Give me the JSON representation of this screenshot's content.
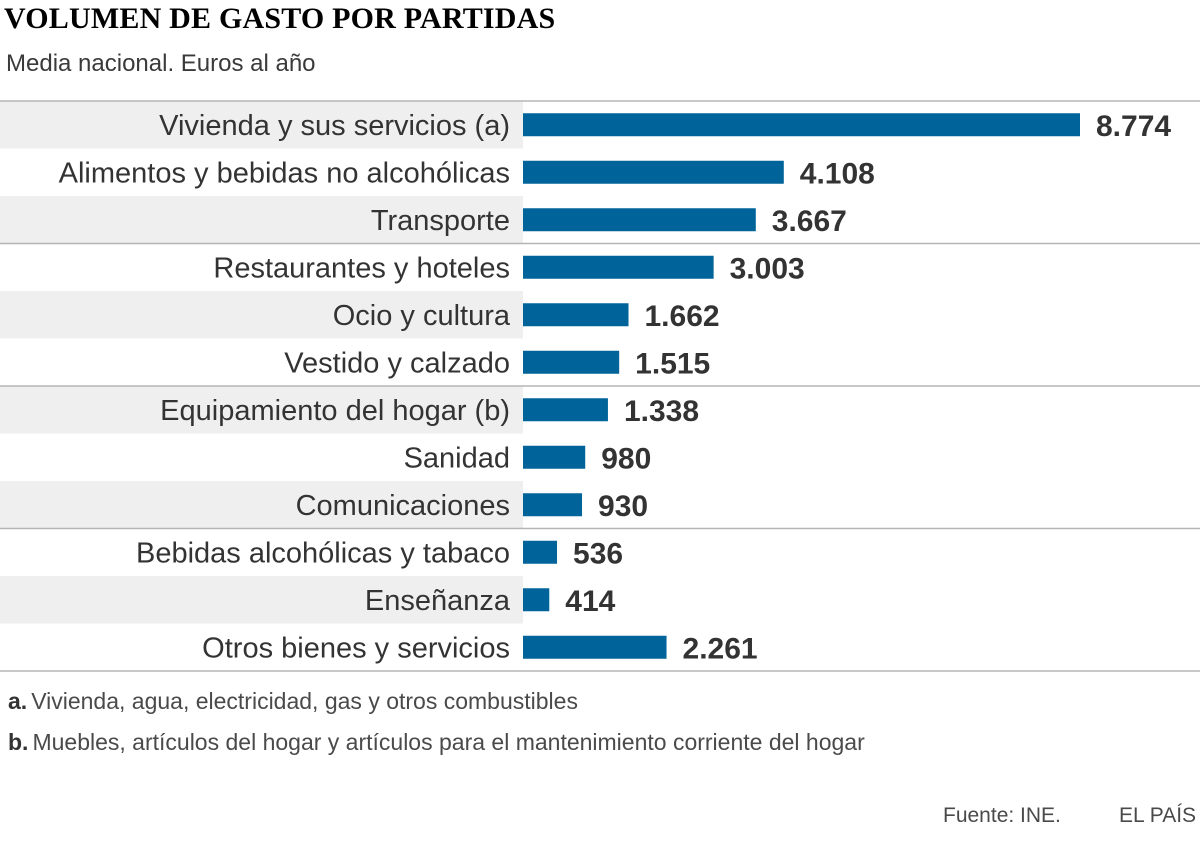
{
  "header": {
    "title": "VOLUMEN DE GASTO POR PARTIDAS",
    "subtitle": "Media nacional. Euros al año"
  },
  "colors": {
    "bar": "#00649b",
    "stripe": "#efefef",
    "divider": "#b5b5b5",
    "text": "#333333"
  },
  "chart_data": {
    "type": "bar",
    "orientation": "horizontal",
    "title": "VOLUMEN DE GASTO POR PARTIDAS",
    "subtitle": "Media nacional. Euros al año",
    "xlabel": "",
    "ylabel": "",
    "xlim": [
      0,
      8774
    ],
    "categories": [
      "Vivienda y sus servicios (a)",
      "Alimentos y bebidas no alcohólicas",
      "Transporte",
      "Restaurantes y hoteles",
      "Ocio y cultura",
      "Vestido y calzado",
      "Equipamiento del hogar (b)",
      "Sanidad",
      "Comunicaciones",
      "Bebidas alcohólicas y tabaco",
      "Enseñanza",
      "Otros bienes y servicios"
    ],
    "values": [
      8774,
      4108,
      3667,
      3003,
      1662,
      1515,
      1338,
      980,
      930,
      536,
      414,
      2261
    ],
    "value_labels": [
      "8.774",
      "4.108",
      "3.667",
      "3.003",
      "1.662",
      "1.515",
      "1.338",
      "980",
      "930",
      "536",
      "414",
      "2.261"
    ]
  },
  "footnotes": [
    {
      "key": "a.",
      "text": "Vivienda, agua, electricidad, gas y otros combustibles"
    },
    {
      "key": "b.",
      "text": "Muebles, artículos del hogar y artículos para el mantenimiento corriente del hogar"
    }
  ],
  "footer": {
    "source": "Fuente: INE.",
    "brand": "EL PAÍS"
  }
}
